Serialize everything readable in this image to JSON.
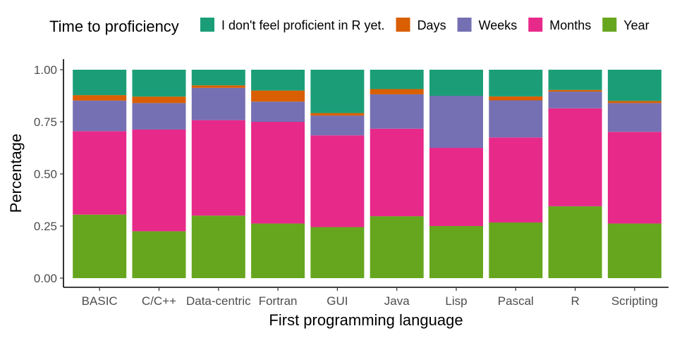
{
  "chart_data": {
    "type": "bar",
    "stacked": true,
    "xlabel": "First programming language",
    "ylabel": "Percentage",
    "ylim": [
      0,
      1
    ],
    "yticks": [
      "0.00",
      "0.25",
      "0.50",
      "0.75",
      "1.00"
    ],
    "grid": false,
    "legend_position": "top",
    "legend_title": "Time to proficiency",
    "categories": [
      "BASIC",
      "C/C++",
      "Data-centric",
      "Fortran",
      "GUI",
      "Java",
      "Lisp",
      "Pascal",
      "R",
      "Scripting"
    ],
    "series": [
      {
        "name": "Year",
        "color": "#66a61e",
        "values": [
          0.305,
          0.225,
          0.3,
          0.262,
          0.245,
          0.297,
          0.25,
          0.267,
          0.345,
          0.262
        ]
      },
      {
        "name": "Months",
        "color": "#e7298a",
        "values": [
          0.4,
          0.488,
          0.458,
          0.488,
          0.44,
          0.42,
          0.375,
          0.408,
          0.47,
          0.44
        ]
      },
      {
        "name": "Weeks",
        "color": "#7570b3",
        "values": [
          0.147,
          0.127,
          0.155,
          0.097,
          0.095,
          0.165,
          0.25,
          0.178,
          0.08,
          0.138
        ]
      },
      {
        "name": "Days",
        "color": "#d95f02",
        "values": [
          0.026,
          0.031,
          0.012,
          0.053,
          0.012,
          0.025,
          0.0,
          0.019,
          0.008,
          0.01
        ]
      },
      {
        "name": "I don't feel proficient in R yet.",
        "color": "#1b9e77",
        "values": [
          0.122,
          0.129,
          0.075,
          0.1,
          0.208,
          0.093,
          0.125,
          0.128,
          0.097,
          0.15
        ]
      }
    ],
    "legend_order": [
      "I don't feel proficient in R yet.",
      "Days",
      "Weeks",
      "Months",
      "Year"
    ]
  }
}
